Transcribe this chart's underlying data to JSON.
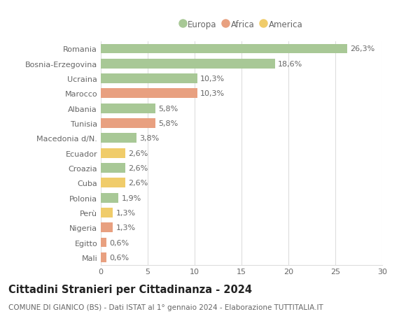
{
  "categories": [
    "Romania",
    "Bosnia-Erzegovina",
    "Ucraina",
    "Marocco",
    "Albania",
    "Tunisia",
    "Macedonia d/N.",
    "Ecuador",
    "Croazia",
    "Cuba",
    "Polonia",
    "Perù",
    "Nigeria",
    "Egitto",
    "Mali"
  ],
  "values": [
    26.3,
    18.6,
    10.3,
    10.3,
    5.8,
    5.8,
    3.8,
    2.6,
    2.6,
    2.6,
    1.9,
    1.3,
    1.3,
    0.6,
    0.6
  ],
  "continents": [
    "Europa",
    "Europa",
    "Europa",
    "Africa",
    "Europa",
    "Africa",
    "Europa",
    "America",
    "Europa",
    "America",
    "Europa",
    "America",
    "Africa",
    "Africa",
    "Africa"
  ],
  "colors": {
    "Europa": "#a8c896",
    "Africa": "#e8a080",
    "America": "#f0cc6a"
  },
  "legend_colors": {
    "Europa": "#a8c896",
    "Africa": "#e8a080",
    "America": "#f0cc6a"
  },
  "xlim": [
    0,
    30
  ],
  "xticks": [
    0,
    5,
    10,
    15,
    20,
    25,
    30
  ],
  "title": "Cittadini Stranieri per Cittadinanza - 2024",
  "subtitle": "COMUNE DI GIANICO (BS) - Dati ISTAT al 1° gennaio 2024 - Elaborazione TUTTITALIA.IT",
  "background_color": "#ffffff",
  "grid_color": "#dddddd",
  "bar_height": 0.65,
  "title_fontsize": 10.5,
  "subtitle_fontsize": 7.5,
  "label_fontsize": 8,
  "tick_fontsize": 8,
  "legend_fontsize": 8.5,
  "text_color": "#666666"
}
